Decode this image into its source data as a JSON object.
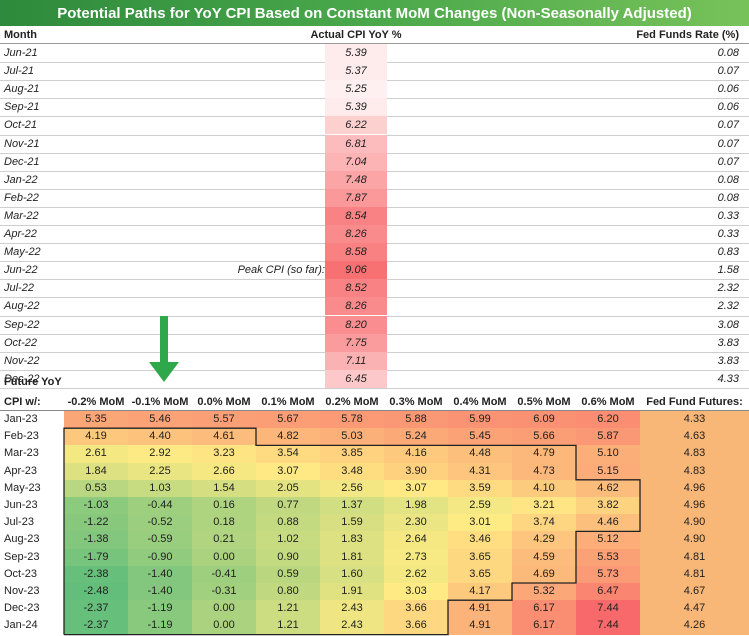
{
  "chart_data": {
    "type": "table",
    "title": "Potential Paths for YoY CPI Based on Constant MoM Changes (Non-Seasonally Adjusted)",
    "history": {
      "headers": {
        "month": "Month",
        "cpi": "Actual CPI YoY %",
        "ff": "Fed Funds Rate (%)"
      },
      "peak_label": "Peak CPI (so far):",
      "peak_index": 12,
      "rows": [
        {
          "month": "Jun-21",
          "cpi": "5.39",
          "ff": "0.08"
        },
        {
          "month": "Jul-21",
          "cpi": "5.37",
          "ff": "0.07"
        },
        {
          "month": "Aug-21",
          "cpi": "5.25",
          "ff": "0.06"
        },
        {
          "month": "Sep-21",
          "cpi": "5.39",
          "ff": "0.06"
        },
        {
          "month": "Oct-21",
          "cpi": "6.22",
          "ff": "0.07"
        },
        {
          "month": "Nov-21",
          "cpi": "6.81",
          "ff": "0.07"
        },
        {
          "month": "Dec-21",
          "cpi": "7.04",
          "ff": "0.07"
        },
        {
          "month": "Jan-22",
          "cpi": "7.48",
          "ff": "0.08"
        },
        {
          "month": "Feb-22",
          "cpi": "7.87",
          "ff": "0.08"
        },
        {
          "month": "Mar-22",
          "cpi": "8.54",
          "ff": "0.33"
        },
        {
          "month": "Apr-22",
          "cpi": "8.26",
          "ff": "0.33"
        },
        {
          "month": "May-22",
          "cpi": "8.58",
          "ff": "0.83"
        },
        {
          "month": "Jun-22",
          "cpi": "9.06",
          "ff": "1.58"
        },
        {
          "month": "Jul-22",
          "cpi": "8.52",
          "ff": "2.32"
        },
        {
          "month": "Aug-22",
          "cpi": "8.26",
          "ff": "2.32"
        },
        {
          "month": "Sep-22",
          "cpi": "8.20",
          "ff": "3.08"
        },
        {
          "month": "Oct-22",
          "cpi": "7.75",
          "ff": "3.83"
        },
        {
          "month": "Nov-22",
          "cpi": "7.11",
          "ff": "3.83"
        },
        {
          "month": "Dec-22",
          "cpi": "6.45",
          "ff": "4.33"
        }
      ]
    },
    "future": {
      "section_title": "Future YoY",
      "row_header": "CPI w/:",
      "columns": [
        "-0.2% MoM",
        "-0.1% MoM",
        "0.0% MoM",
        "0.1% MoM",
        "0.2% MoM",
        "0.3% MoM",
        "0.4% MoM",
        "0.5% MoM",
        "0.6% MoM"
      ],
      "futures_header": "Fed Fund Futures:",
      "rows": [
        {
          "month": "Jan-23",
          "values": [
            "5.35",
            "5.46",
            "5.57",
            "5.67",
            "5.78",
            "5.88",
            "5.99",
            "6.09",
            "6.20"
          ],
          "futures": "4.33"
        },
        {
          "month": "Feb-23",
          "values": [
            "4.19",
            "4.40",
            "4.61",
            "4.82",
            "5.03",
            "5.24",
            "5.45",
            "5.66",
            "5.87"
          ],
          "futures": "4.63"
        },
        {
          "month": "Mar-23",
          "values": [
            "2.61",
            "2.92",
            "3.23",
            "3.54",
            "3.85",
            "4.16",
            "4.48",
            "4.79",
            "5.10"
          ],
          "futures": "4.83"
        },
        {
          "month": "Apr-23",
          "values": [
            "1.84",
            "2.25",
            "2.66",
            "3.07",
            "3.48",
            "3.90",
            "4.31",
            "4.73",
            "5.15"
          ],
          "futures": "4.83"
        },
        {
          "month": "May-23",
          "values": [
            "0.53",
            "1.03",
            "1.54",
            "2.05",
            "2.56",
            "3.07",
            "3.59",
            "4.10",
            "4.62"
          ],
          "futures": "4.96"
        },
        {
          "month": "Jun-23",
          "values": [
            "-1.03",
            "-0.44",
            "0.16",
            "0.77",
            "1.37",
            "1.98",
            "2.59",
            "3.21",
            "3.82"
          ],
          "futures": "4.96"
        },
        {
          "month": "Jul-23",
          "values": [
            "-1.22",
            "-0.52",
            "0.18",
            "0.88",
            "1.59",
            "2.30",
            "3.01",
            "3.74",
            "4.46"
          ],
          "futures": "4.90"
        },
        {
          "month": "Aug-23",
          "values": [
            "-1.38",
            "-0.59",
            "0.21",
            "1.02",
            "1.83",
            "2.64",
            "3.46",
            "4.29",
            "5.12"
          ],
          "futures": "4.90"
        },
        {
          "month": "Sep-23",
          "values": [
            "-1.79",
            "-0.90",
            "0.00",
            "0.90",
            "1.81",
            "2.73",
            "3.65",
            "4.59",
            "5.53"
          ],
          "futures": "4.81"
        },
        {
          "month": "Oct-23",
          "values": [
            "-2.38",
            "-1.40",
            "-0.41",
            "0.59",
            "1.60",
            "2.62",
            "3.65",
            "4.69",
            "5.73"
          ],
          "futures": "4.81"
        },
        {
          "month": "Nov-23",
          "values": [
            "-2.48",
            "-1.40",
            "-0.31",
            "0.80",
            "1.91",
            "3.03",
            "4.17",
            "5.32",
            "6.47"
          ],
          "futures": "4.67"
        },
        {
          "month": "Dec-23",
          "values": [
            "-2.37",
            "-1.19",
            "0.00",
            "1.21",
            "2.43",
            "3.66",
            "4.91",
            "6.17",
            "7.44"
          ],
          "futures": "4.47"
        },
        {
          "month": "Jan-24",
          "values": [
            "-2.37",
            "-1.19",
            "0.00",
            "1.21",
            "2.43",
            "3.66",
            "4.91",
            "6.17",
            "7.44"
          ],
          "futures": "4.26"
        }
      ]
    },
    "colors": {
      "title_bg": "#3f9c45",
      "arrow": "#2ea84a",
      "heat_low": "#63be7b",
      "heat_mid": "#ffeb84",
      "heat_high": "#f8696b",
      "futures_bg": "#f8b776"
    }
  }
}
